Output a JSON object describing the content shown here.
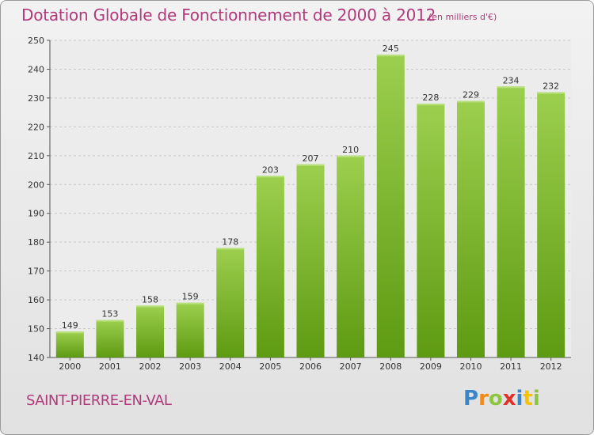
{
  "chart_data": {
    "type": "bar",
    "title": "Dotation Globale de Fonctionnement de 2000 à 2012",
    "subtitle": "(en milliers d'€)",
    "categories": [
      "2000",
      "2001",
      "2002",
      "2003",
      "2004",
      "2005",
      "2006",
      "2007",
      "2008",
      "2009",
      "2010",
      "2011",
      "2012"
    ],
    "values": [
      149,
      153,
      158,
      159,
      178,
      203,
      207,
      210,
      245,
      228,
      229,
      234,
      232
    ],
    "ylim": [
      140,
      250
    ],
    "yticks": [
      140,
      150,
      160,
      170,
      180,
      190,
      200,
      210,
      220,
      230,
      240,
      250
    ],
    "grid": true,
    "colors": {
      "bar_top": "#9ccf4e",
      "bar_bottom": "#5e9a12",
      "text": "#b03a7a"
    }
  },
  "footer": {
    "commune": "SAINT-PIERRE-EN-VAL",
    "brand_letters": [
      "P",
      "r",
      "o",
      "x",
      "i",
      "t",
      "i"
    ],
    "brand_colors": [
      "#3a86c8",
      "#f08a1c",
      "#8cc63e",
      "#e2312b",
      "#3a86c8",
      "#f5c200",
      "#8cc63e"
    ]
  }
}
